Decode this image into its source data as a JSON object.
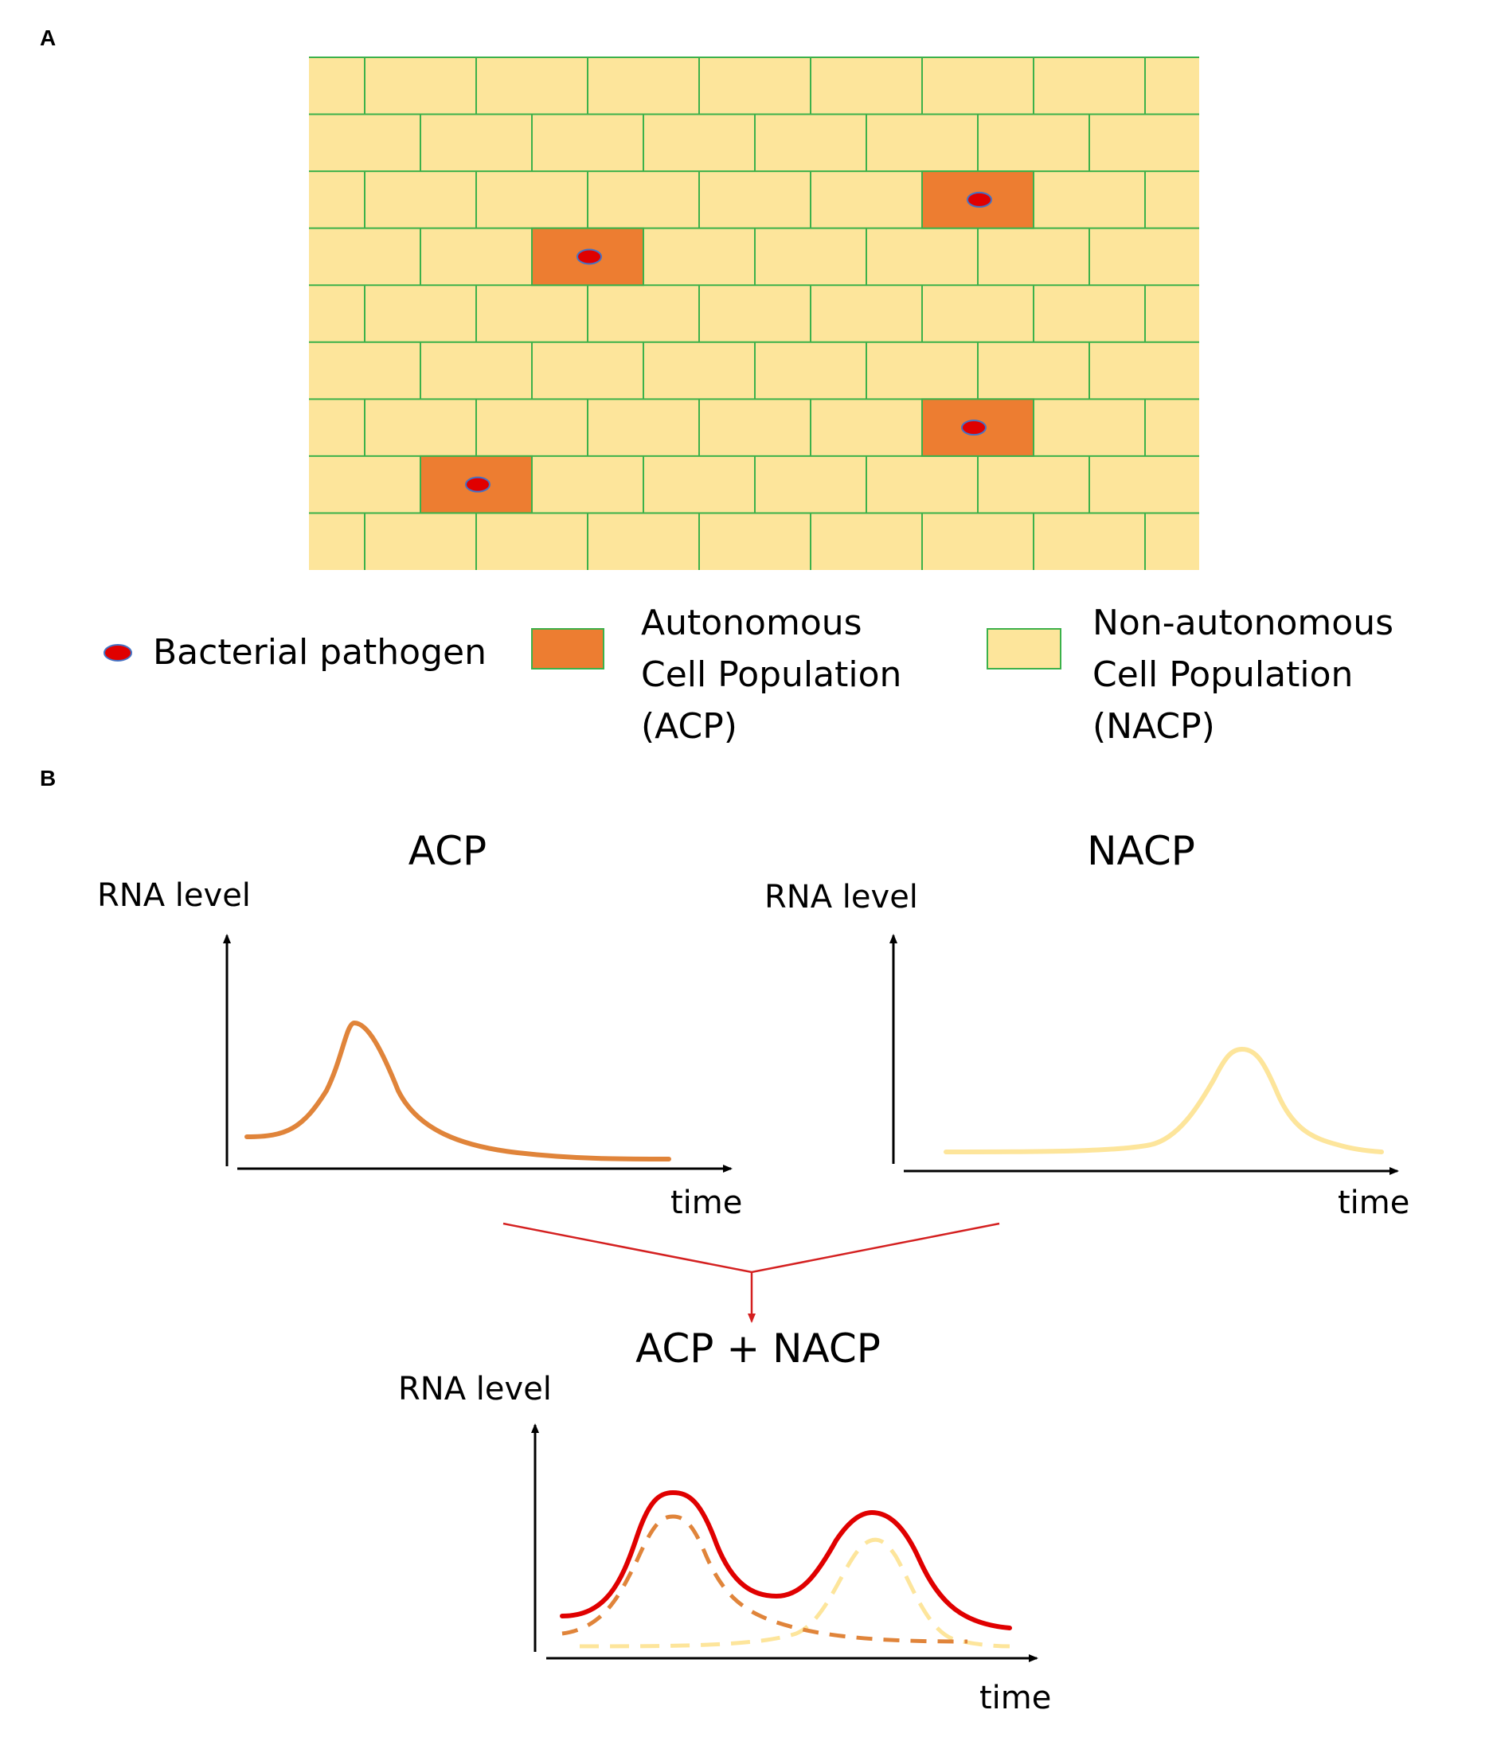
{
  "panels": {
    "a": "A",
    "b": "B"
  },
  "colors": {
    "tissue_fill": "#fde59b",
    "tissue_border": "#3cb14a",
    "acp_fill": "#ed7d31",
    "acp_border": "#3cb14a",
    "pathogen_fill": "#e00000",
    "pathogen_border": "#4472c4",
    "acp_curve": "#e0843a",
    "nacp_curve": "#fde59b",
    "sum_curve": "#e00000",
    "arrow": "#d42020"
  },
  "legend": {
    "pathogen": "Bacterial pathogen",
    "acp": [
      "Autonomous",
      "Cell Population",
      "(ACP)"
    ],
    "nacp": [
      "Non-autonomous",
      "Cell Population",
      "(NACP)"
    ]
  },
  "plots": {
    "acp": {
      "title": "ACP",
      "ylabel": "RNA level",
      "xlabel": "time"
    },
    "nacp": {
      "title": "NACP",
      "ylabel": "RNA level",
      "xlabel": "time"
    },
    "sum": {
      "title": "ACP + NACP",
      "ylabel": "RNA level",
      "xlabel": "time"
    }
  }
}
